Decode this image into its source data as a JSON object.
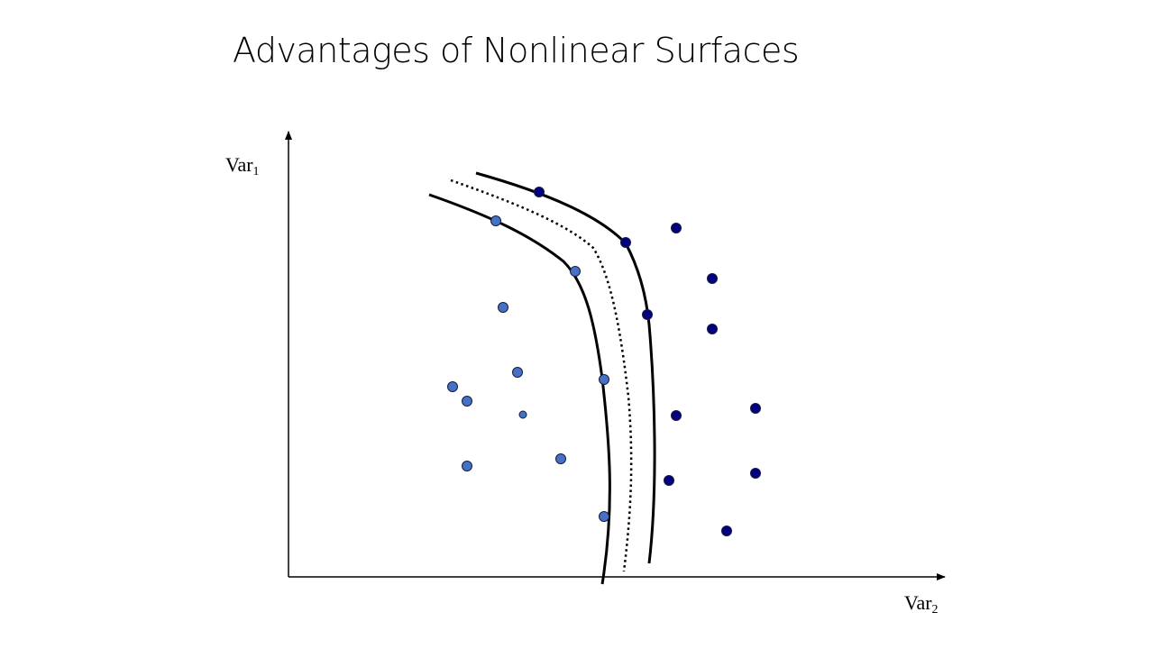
{
  "slide": {
    "title": "Advantages of Nonlinear Surfaces"
  },
  "axes": {
    "y_label": {
      "main": "Var",
      "sub": "1"
    },
    "x_label": {
      "main": "Var",
      "sub": "2"
    }
  },
  "colors": {
    "class_a_fill": "#4472c4",
    "class_b_fill": "#000080",
    "point_stroke": "#1a1a40",
    "line": "#000000"
  }
}
